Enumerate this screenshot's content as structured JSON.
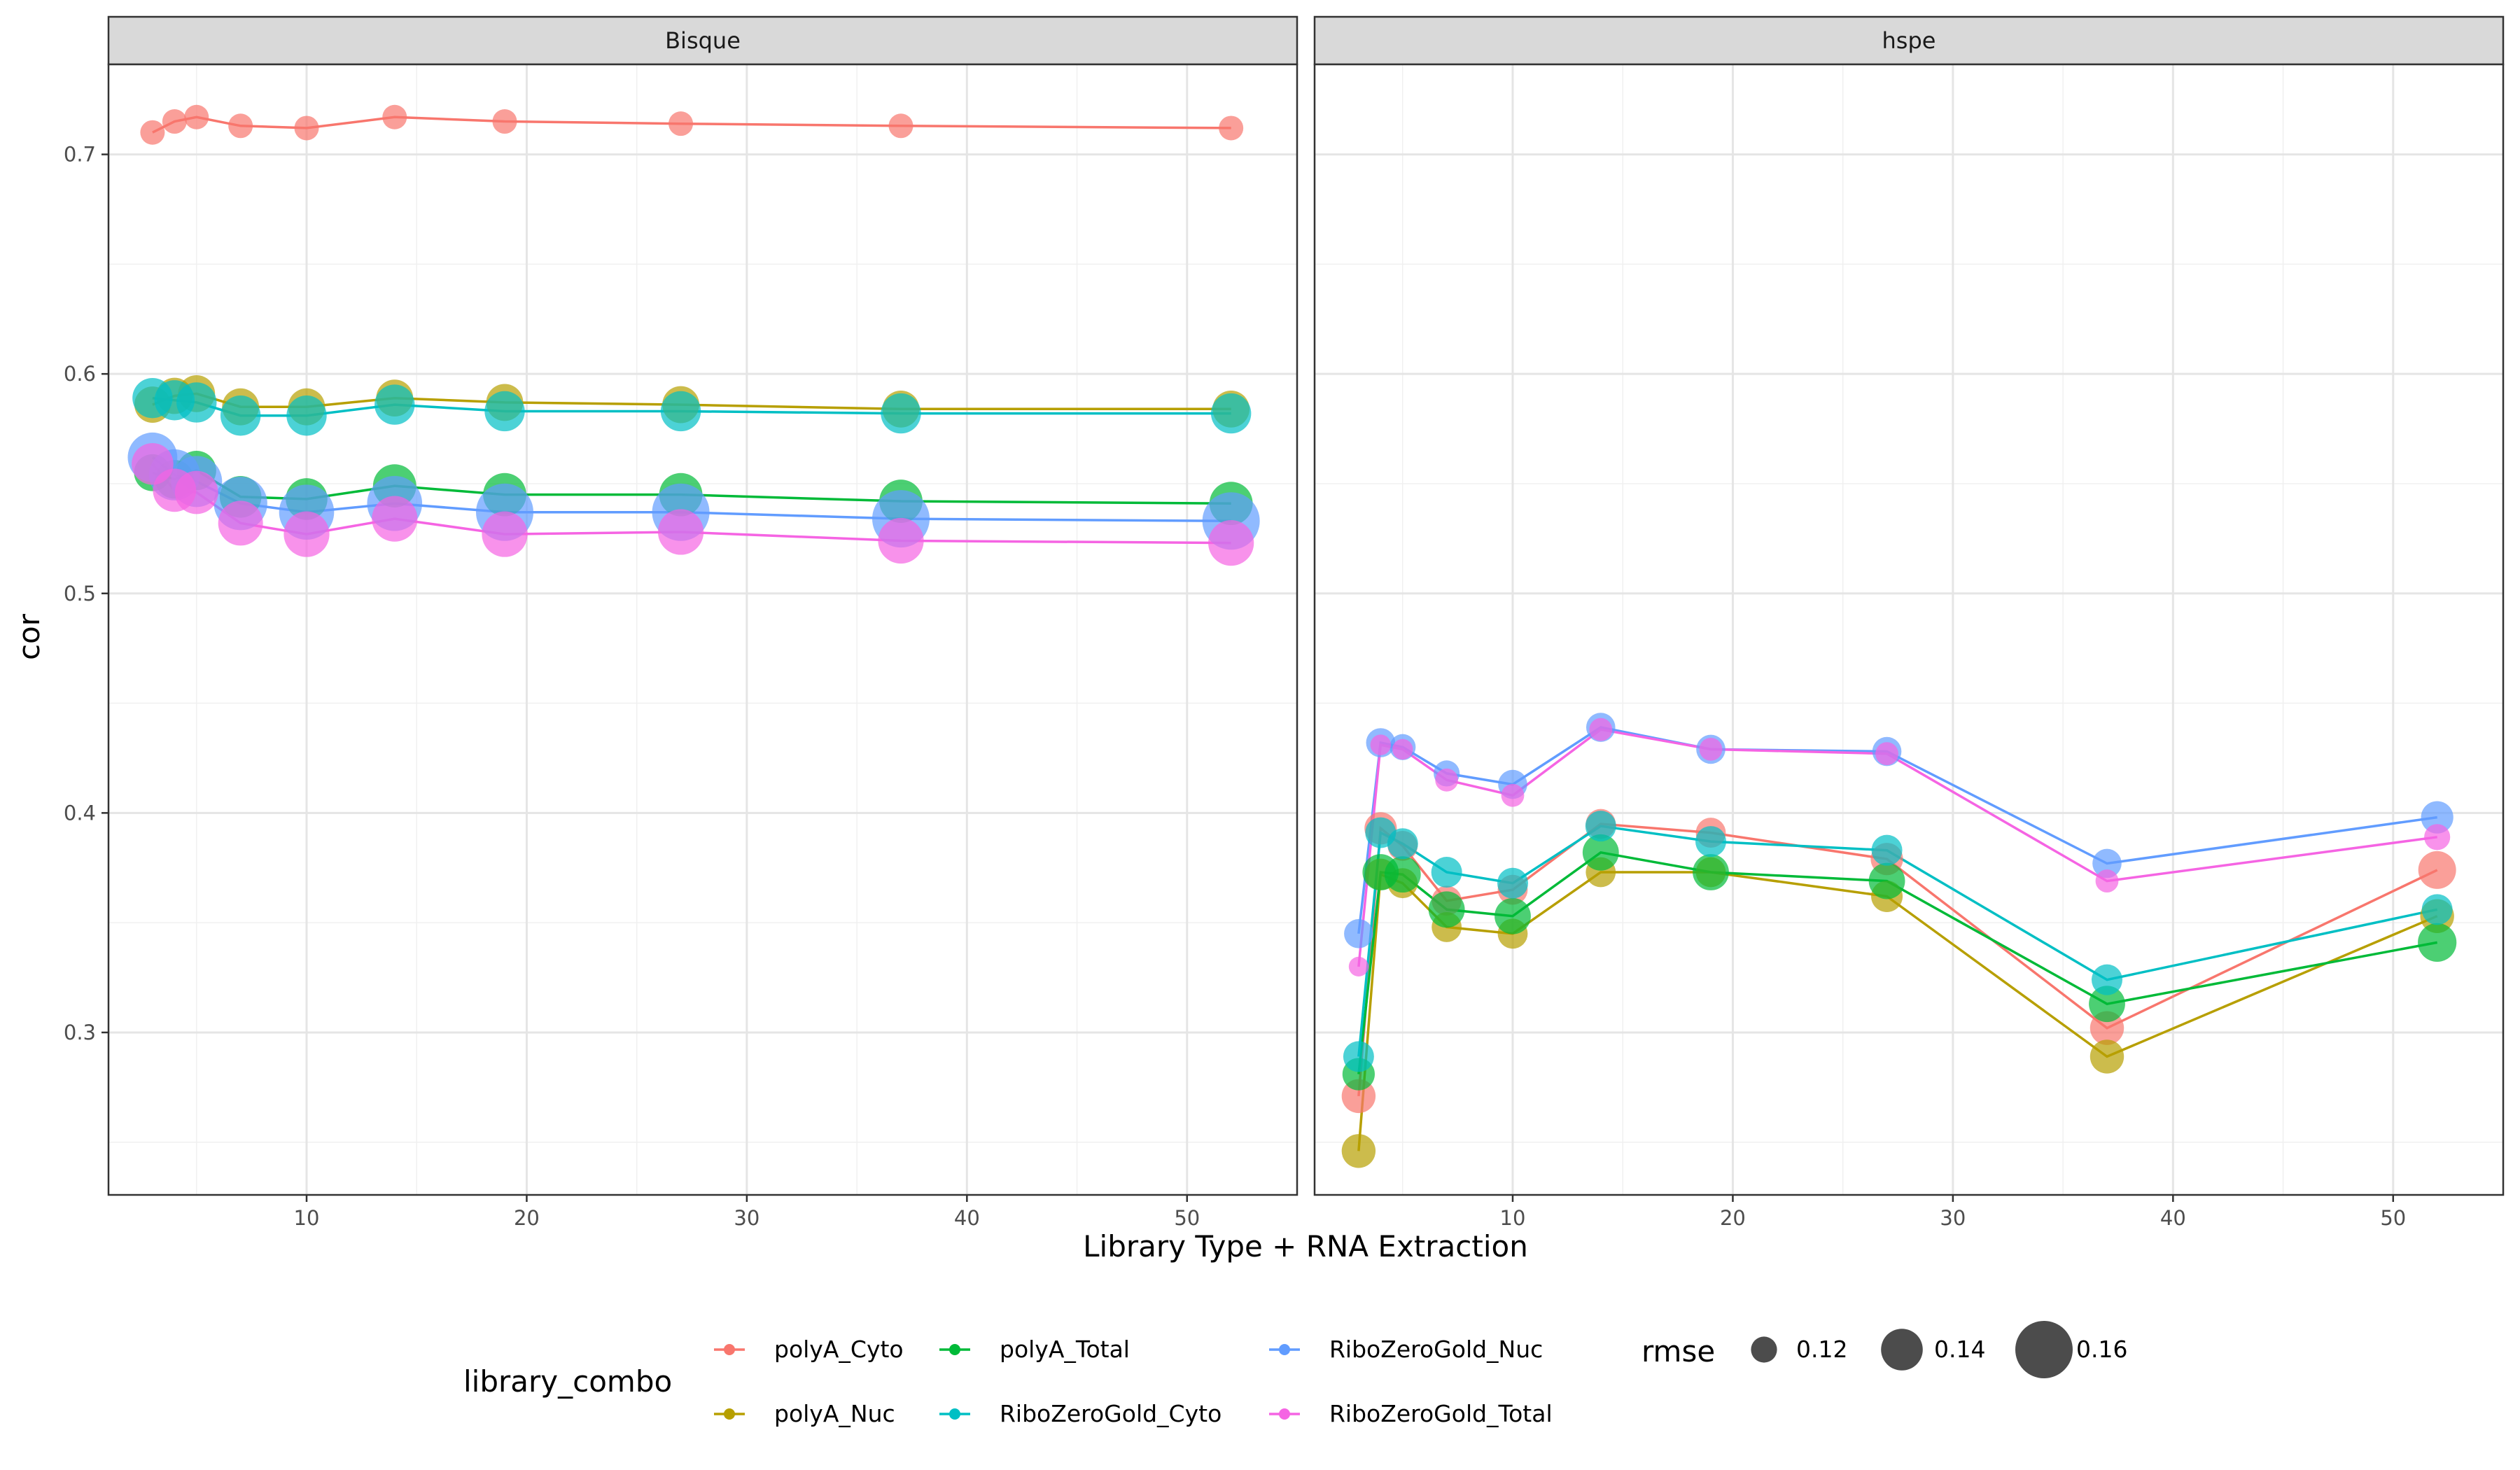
{
  "chart_data": {
    "type": "line",
    "x_label": "Library Type + RNA Extraction",
    "y_label": "cor",
    "xlim": [
      1,
      55
    ],
    "ylim": [
      0.226,
      0.741
    ],
    "x_ticks": [
      10,
      20,
      30,
      40,
      50
    ],
    "y_ticks": [
      0.3,
      0.4,
      0.5,
      0.6,
      0.7
    ],
    "grid": true,
    "colors": {
      "polyA_Cyto": "#F8766D",
      "polyA_Nuc": "#B79F00",
      "polyA_Total": "#00BA38",
      "RiboZeroGold_Cyto": "#00BFC4",
      "RiboZeroGold_Nuc": "#619CFF",
      "RiboZeroGold_Total": "#F564E3"
    },
    "legend": {
      "color_title": "library_combo",
      "color_entries": [
        "polyA_Cyto",
        "polyA_Nuc",
        "polyA_Total",
        "RiboZeroGold_Cyto",
        "RiboZeroGold_Nuc",
        "RiboZeroGold_Total"
      ],
      "size_title": "rmse",
      "size_entries": [
        {
          "label": "0.12",
          "value": 0.12
        },
        {
          "label": "0.14",
          "value": 0.14
        },
        {
          "label": "0.16",
          "value": 0.16
        }
      ],
      "position": "bottom"
    },
    "facets": [
      {
        "label": "Bisque",
        "series": [
          {
            "name": "polyA_Cyto",
            "x": [
              3,
              4,
              5,
              7,
              10,
              14,
              19,
              27,
              37,
              52
            ],
            "y": [
              0.71,
              0.715,
              0.717,
              0.713,
              0.712,
              0.717,
              0.715,
              0.714,
              0.713,
              0.712
            ],
            "rmse": [
              0.118,
              0.118,
              0.118,
              0.118,
              0.118,
              0.118,
              0.118,
              0.118,
              0.118,
              0.118
            ]
          },
          {
            "name": "polyA_Nuc",
            "x": [
              3,
              4,
              5,
              7,
              10,
              14,
              19,
              27,
              37,
              52
            ],
            "y": [
              0.586,
              0.59,
              0.591,
              0.585,
              0.585,
              0.589,
              0.587,
              0.586,
              0.584,
              0.584
            ],
            "rmse": [
              0.133,
              0.133,
              0.134,
              0.134,
              0.134,
              0.134,
              0.134,
              0.134,
              0.134,
              0.134
            ]
          },
          {
            "name": "polyA_Total",
            "x": [
              3,
              4,
              5,
              7,
              10,
              14,
              19,
              27,
              37,
              52
            ],
            "y": [
              0.555,
              0.552,
              0.556,
              0.544,
              0.543,
              0.549,
              0.545,
              0.545,
              0.542,
              0.541
            ],
            "rmse": [
              0.134,
              0.136,
              0.137,
              0.14,
              0.14,
              0.142,
              0.142,
              0.142,
              0.142,
              0.142
            ]
          },
          {
            "name": "RiboZeroGold_Cyto",
            "x": [
              3,
              4,
              5,
              7,
              10,
              14,
              19,
              27,
              37,
              52
            ],
            "y": [
              0.589,
              0.588,
              0.587,
              0.581,
              0.581,
              0.586,
              0.583,
              0.583,
              0.582,
              0.582
            ],
            "rmse": [
              0.138,
              0.138,
              0.138,
              0.138,
              0.138,
              0.138,
              0.138,
              0.138,
              0.138,
              0.138
            ]
          },
          {
            "name": "RiboZeroGold_Nuc",
            "x": [
              3,
              4,
              5,
              7,
              10,
              14,
              19,
              27,
              37,
              52
            ],
            "y": [
              0.562,
              0.554,
              0.551,
              0.541,
              0.537,
              0.541,
              0.537,
              0.537,
              0.534,
              0.533
            ],
            "rmse": [
              0.15,
              0.152,
              0.152,
              0.155,
              0.157,
              0.157,
              0.16,
              0.16,
              0.16,
              0.16
            ]
          },
          {
            "name": "RiboZeroGold_Total",
            "x": [
              3,
              4,
              5,
              7,
              10,
              14,
              19,
              27,
              37,
              52
            ],
            "y": [
              0.559,
              0.547,
              0.546,
              0.532,
              0.527,
              0.534,
              0.527,
              0.528,
              0.524,
              0.523
            ],
            "rmse": [
              0.14,
              0.142,
              0.142,
              0.144,
              0.145,
              0.145,
              0.145,
              0.145,
              0.145,
              0.145
            ]
          }
        ]
      },
      {
        "label": "hspe",
        "series": [
          {
            "name": "polyA_Cyto",
            "x": [
              3,
              4,
              5,
              7,
              10,
              14,
              19,
              27,
              37,
              52
            ],
            "y": [
              0.271,
              0.393,
              0.385,
              0.36,
              0.365,
              0.395,
              0.391,
              0.379,
              0.302,
              0.374
            ],
            "rmse": [
              0.13,
              0.128,
              0.125,
              0.125,
              0.125,
              0.125,
              0.125,
              0.128,
              0.13,
              0.135
            ]
          },
          {
            "name": "polyA_Nuc",
            "x": [
              3,
              4,
              5,
              7,
              10,
              14,
              19,
              27,
              37,
              52
            ],
            "y": [
              0.246,
              0.372,
              0.368,
              0.348,
              0.345,
              0.373,
              0.373,
              0.362,
              0.289,
              0.353
            ],
            "rmse": [
              0.13,
              0.127,
              0.125,
              0.125,
              0.125,
              0.125,
              0.125,
              0.127,
              0.13,
              0.13
            ]
          },
          {
            "name": "polyA_Total",
            "x": [
              3,
              4,
              5,
              7,
              10,
              14,
              19,
              27,
              37,
              52
            ],
            "y": [
              0.281,
              0.373,
              0.372,
              0.356,
              0.353,
              0.382,
              0.373,
              0.369,
              0.313,
              0.341
            ],
            "rmse": [
              0.128,
              0.133,
              0.133,
              0.133,
              0.133,
              0.133,
              0.133,
              0.133,
              0.133,
              0.136
            ]
          },
          {
            "name": "RiboZeroGold_Cyto",
            "x": [
              3,
              4,
              5,
              7,
              10,
              14,
              19,
              27,
              37,
              52
            ],
            "y": [
              0.289,
              0.391,
              0.386,
              0.373,
              0.368,
              0.394,
              0.387,
              0.383,
              0.324,
              0.356
            ]
          },
          {
            "name": "RiboZeroGold_Nuc",
            "x": [
              3,
              4,
              5,
              7,
              10,
              14,
              19,
              27,
              37,
              52
            ],
            "y": [
              0.345,
              0.432,
              0.43,
              0.418,
              0.413,
              0.439,
              0.429,
              0.428,
              0.377,
              0.398
            ],
            "rmse": [
              0.124,
              0.124,
              0.12,
              0.12,
              0.124,
              0.124,
              0.124,
              0.124,
              0.124,
              0.128
            ]
          },
          {
            "name": "RiboZeroGold_Total",
            "x": [
              3,
              4,
              5,
              7,
              10,
              14,
              19,
              27,
              37,
              52
            ],
            "y": [
              0.33,
              0.431,
              0.429,
              0.415,
              0.408,
              0.438,
              0.429,
              0.427,
              0.369,
              0.389
            ],
            "rmse": [
              0.112,
              0.113,
              0.113,
              0.116,
              0.116,
              0.116,
              0.116,
              0.116,
              0.116,
              0.12
            ]
          }
        ]
      }
    ]
  }
}
